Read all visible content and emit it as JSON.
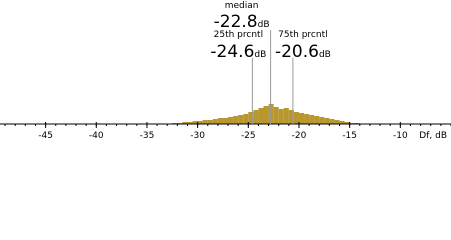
{
  "chart_data": {
    "type": "histogram",
    "bins": [
      -32.5,
      -32,
      -31.5,
      -31,
      -30.5,
      -30,
      -29.5,
      -29,
      -28.5,
      -28,
      -27.5,
      -27,
      -26.5,
      -26,
      -25.5,
      -25,
      -24.5,
      -24,
      -23.5,
      -23,
      -22.5,
      -22,
      -21.5,
      -21,
      -20.5,
      -20,
      -19.5,
      -19,
      -18.5,
      -18,
      -17.5,
      -17,
      -16.5,
      -16,
      -15.5,
      -15,
      -14.5,
      -14
    ],
    "values": [
      1,
      1,
      2,
      2,
      3,
      3,
      4,
      4,
      5,
      6,
      6,
      7,
      8,
      9,
      10,
      12,
      14,
      16,
      18,
      20,
      17,
      15,
      16,
      14,
      12,
      11,
      10,
      9,
      8,
      7,
      6,
      5,
      4,
      3,
      2,
      1,
      1
    ],
    "color": "#b8972f",
    "xlim": [
      -49.5,
      -5
    ],
    "ylim": [
      0,
      100
    ],
    "xticks": [
      -45,
      -40,
      -35,
      -30,
      -25,
      -20,
      -15,
      -10
    ],
    "x_minor_step": 1,
    "xlabel": "Df, dB",
    "markers": [
      {
        "label": "25th prcntl",
        "value": -24.6,
        "unit": "dB"
      },
      {
        "label": "median",
        "value": -22.8,
        "unit": "dB"
      },
      {
        "label": "75th prcntl",
        "value": -20.6,
        "unit": "dB"
      }
    ]
  }
}
